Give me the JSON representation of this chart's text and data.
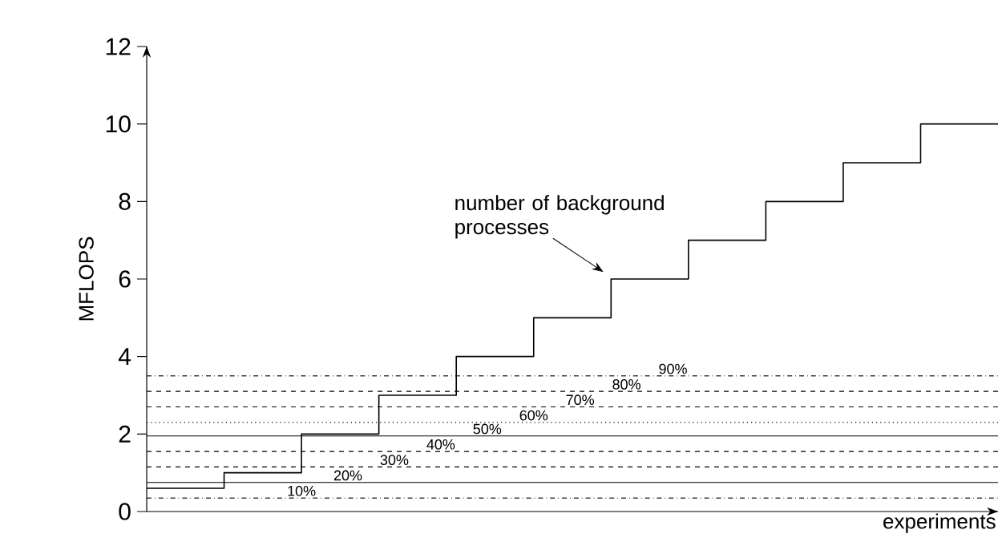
{
  "chart_data": {
    "type": "step",
    "categories": [
      null,
      null,
      null,
      null,
      null,
      null,
      null,
      null,
      null,
      null,
      null,
      null
    ],
    "xlabel": "experiments",
    "ylabel": "MFLOPS",
    "ylim": [
      0,
      12
    ],
    "yticks": [
      0,
      2,
      4,
      6,
      8,
      10,
      12
    ],
    "tick_labels": "y",
    "marker": "none",
    "grid": false,
    "legend": false,
    "annotations": [
      "number of background processes"
    ],
    "series": [
      {
        "color": "#000000",
        "values": [
          0.6,
          1,
          2,
          3,
          4,
          5,
          6,
          7,
          8,
          9,
          10,
          10
        ]
      },
      {
        "type": "line",
        "name": "10%",
        "color": "#000000",
        "line_style": "dashdotted",
        "values": [
          0.35,
          0.35,
          0.35,
          0.35,
          0.35,
          0.35,
          0.35,
          0.35,
          0.35,
          0.35,
          0.35,
          0.35
        ]
      },
      {
        "type": "line",
        "name": "20%",
        "color": "#000000",
        "line_style": "solid",
        "values": [
          0.75,
          0.75,
          0.75,
          0.75,
          0.75,
          0.75,
          0.75,
          0.75,
          0.75,
          0.75,
          0.75,
          0.75
        ]
      },
      {
        "type": "line",
        "name": "30%",
        "color": "#000000",
        "line_style": "dashed",
        "values": [
          1.15,
          1.15,
          1.15,
          1.15,
          1.15,
          1.15,
          1.15,
          1.15,
          1.15,
          1.15,
          1.15,
          1.15
        ]
      },
      {
        "type": "line",
        "name": "40%",
        "color": "#000000",
        "line_style": "dashed",
        "values": [
          1.55,
          1.55,
          1.55,
          1.55,
          1.55,
          1.55,
          1.55,
          1.55,
          1.55,
          1.55,
          1.55,
          1.55
        ]
      },
      {
        "type": "line",
        "name": "50%",
        "color": "#000000",
        "line_style": "solid",
        "values": [
          1.95,
          1.95,
          1.95,
          1.95,
          1.95,
          1.95,
          1.95,
          1.95,
          1.95,
          1.95,
          1.95,
          1.95
        ]
      },
      {
        "type": "line",
        "name": "60%",
        "color": "#000000",
        "line_style": "dotted",
        "values": [
          2.3,
          2.3,
          2.3,
          2.3,
          2.3,
          2.3,
          2.3,
          2.3,
          2.3,
          2.3,
          2.3,
          2.3
        ]
      },
      {
        "type": "line",
        "name": "70%",
        "color": "#000000",
        "line_style": "dashed",
        "values": [
          2.7,
          2.7,
          2.7,
          2.7,
          2.7,
          2.7,
          2.7,
          2.7,
          2.7,
          2.7,
          2.7,
          2.7
        ]
      },
      {
        "type": "line",
        "name": "80%",
        "color": "#000000",
        "line_style": "dashed",
        "values": [
          3.1,
          3.1,
          3.1,
          3.1,
          3.1,
          3.1,
          3.1,
          3.1,
          3.1,
          3.1,
          3.1,
          3.1
        ]
      },
      {
        "type": "line",
        "name": "90%",
        "color": "#000000",
        "line_style": "dashdotted",
        "values": [
          3.5,
          3.5,
          3.5,
          3.5,
          3.5,
          3.5,
          3.5,
          3.5,
          3.5,
          3.5,
          3.5,
          3.5
        ]
      }
    ]
  }
}
